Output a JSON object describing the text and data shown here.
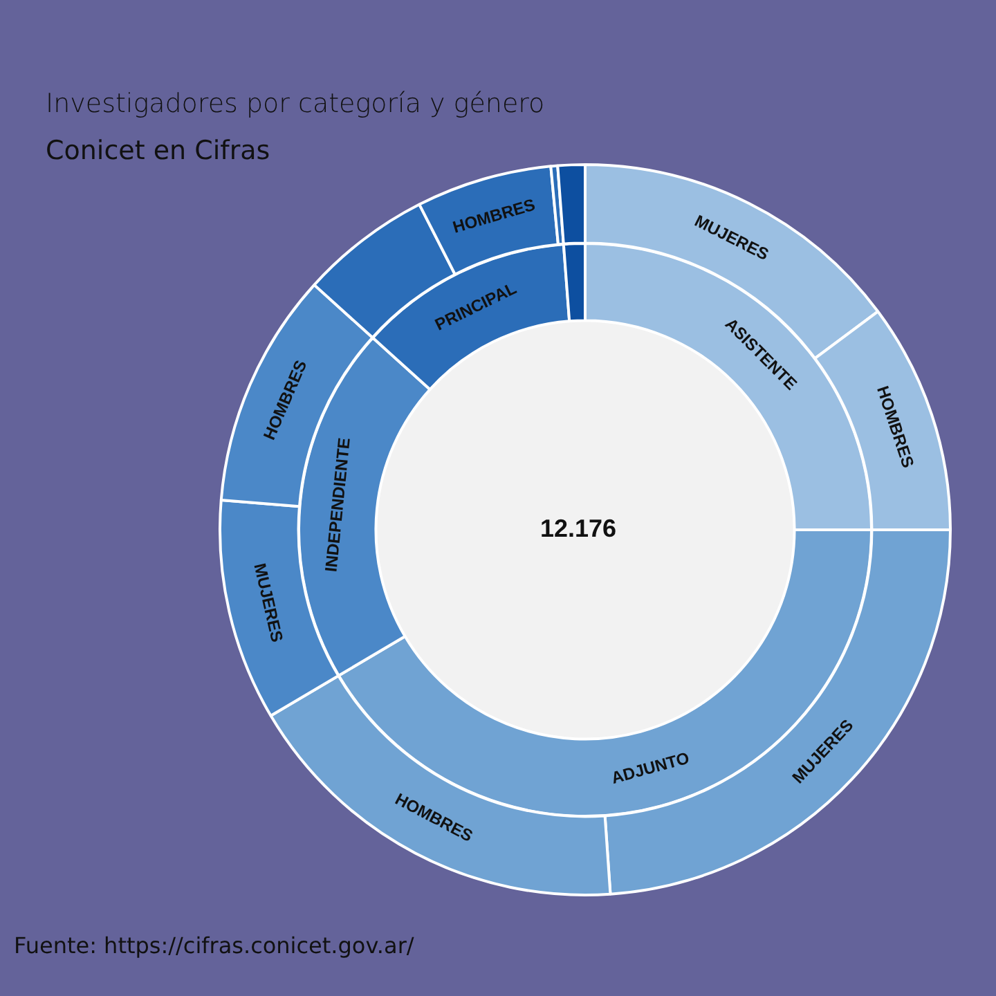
{
  "chart_data": [
    {
      "type": "donut",
      "title": "Investigadores por categoría y género",
      "subtitle": "Conicet en Cifras",
      "categories": [
        "ASISTENTE",
        "ADJUNTO",
        "INDEPENDIENTE",
        "PRINCIPAL",
        null
      ],
      "values": [
        25.0,
        41.5,
        20.2,
        12.1,
        1.2
      ],
      "colors": [
        "#9bbfe2",
        "#70a3d3",
        "#4b88c8",
        "#2b6db8",
        "#0d4fa0"
      ],
      "annotations": [
        "12.176"
      ]
    },
    {
      "type": "donut",
      "categories": [
        "MUJERES",
        "HOMBRES",
        "MUJERES",
        "HOMBRES",
        "MUJERES",
        "HOMBRES",
        null,
        "HOMBRES",
        null,
        null
      ],
      "values": [
        14.8,
        10.2,
        23.9,
        17.6,
        9.8,
        10.4,
        5.8,
        6.0,
        0.3,
        1.2
      ],
      "colors": [
        "#9bbfe2",
        "#9bbfe2",
        "#70a3d3",
        "#70a3d3",
        "#4b88c8",
        "#4b88c8",
        "#2b6db8",
        "#2b6db8",
        "#2b6db8",
        "#0d4fa0"
      ],
      "annotations": [
        "Fuente: https://cifras.conicet.gov.ar/"
      ]
    }
  ]
}
